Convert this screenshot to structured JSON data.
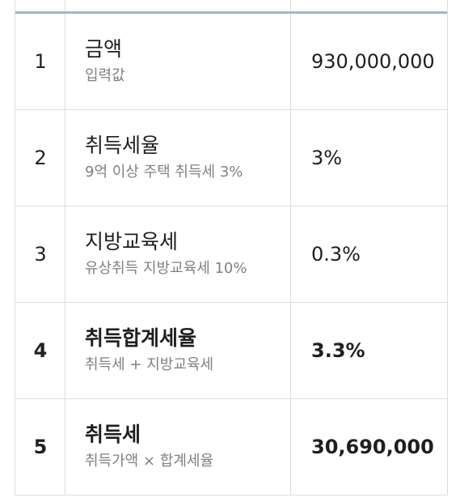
{
  "rows": [
    {
      "num": "1",
      "title": "금액",
      "sub": "입력값",
      "value": "930,000,000",
      "bold": false
    },
    {
      "num": "2",
      "title": "취득세율",
      "sub": "9억 이상 주택 취득세 3%",
      "value": "3%",
      "bold": false
    },
    {
      "num": "3",
      "title": "지방교육세",
      "sub": "유상취득 지방교육세 10%",
      "value": "0.3%",
      "bold": false
    },
    {
      "num": "4",
      "title": "취득합계세율",
      "sub": "취득세 + 지방교육세",
      "value": "3.3%",
      "bold": true
    },
    {
      "num": "5",
      "title": "취득세",
      "sub": "취득가액 × 합계세율",
      "value": "30,690,000",
      "bold": true
    }
  ]
}
